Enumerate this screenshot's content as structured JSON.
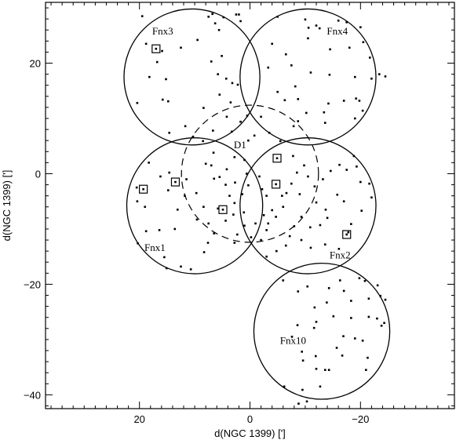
{
  "chart_data": {
    "type": "scatter",
    "title": "",
    "xlabel": "d(NGC 1399) [']",
    "ylabel": "d(NGC 1399) [']",
    "xlim": [
      37,
      -37
    ],
    "ylim": [
      -42.5,
      31
    ],
    "x_ticks": [
      20,
      0,
      -20
    ],
    "x_minor_step": 2,
    "y_ticks": [
      20,
      0,
      -20,
      -40
    ],
    "y_minor_step": 2,
    "x_tick_labels": [
      "20",
      "0",
      "−20"
    ],
    "y_tick_labels": [
      "20",
      "0",
      "−20",
      "−40"
    ],
    "fields": [
      {
        "name": "Fnx3",
        "cx": 10.5,
        "cy": 17.5,
        "r": 12.3,
        "style": "solid",
        "label_x": 15.8,
        "label_y": 25.2
      },
      {
        "name": "Fnx4",
        "cx": -10.5,
        "cy": 17.5,
        "r": 12.3,
        "style": "solid",
        "label_x": -15.8,
        "label_y": 25.2
      },
      {
        "name": "D1",
        "cx": 0,
        "cy": 0,
        "r": 12.4,
        "style": "dashed",
        "label_x": 1.8,
        "label_y": 4.6
      },
      {
        "name": "Fnx1",
        "cx": 10.0,
        "cy": -5.8,
        "r": 12.3,
        "style": "solid",
        "label_x": 17.2,
        "label_y": -14.0
      },
      {
        "name": "Fnx2",
        "cx": -10.5,
        "cy": -5.8,
        "r": 12.3,
        "style": "solid",
        "label_x": -16.3,
        "label_y": -15.3
      },
      {
        "name": "Fnx10",
        "cx": -13.0,
        "cy": -28.5,
        "r": 12.3,
        "style": "solid",
        "label_x": -7.8,
        "label_y": -30.8
      }
    ],
    "series": [
      {
        "marker": "dot",
        "points": [
          [
            19.5,
            28.5
          ],
          [
            18.8,
            23.5
          ],
          [
            16.8,
            20.2
          ],
          [
            15.2,
            17.1
          ],
          [
            15.9,
            22.2
          ],
          [
            18.2,
            17.5
          ],
          [
            20.4,
            12.8
          ],
          [
            15.8,
            13.4
          ],
          [
            14.8,
            13.1
          ],
          [
            12.5,
            22.8
          ],
          [
            9.5,
            24.2
          ],
          [
            6.8,
            28.9
          ],
          [
            7.5,
            28.4
          ],
          [
            4.8,
            28.3
          ],
          [
            6.3,
            27.2
          ],
          [
            2.5,
            28.8
          ],
          [
            2.0,
            28.8
          ],
          [
            1.7,
            27.6
          ],
          [
            5.6,
            26.0
          ],
          [
            7.0,
            20.3
          ],
          [
            5.8,
            18.0
          ],
          [
            4.3,
            17.2
          ],
          [
            3.2,
            16.4
          ],
          [
            2.2,
            16.1
          ],
          [
            5.5,
            14.3
          ],
          [
            3.5,
            12.9
          ],
          [
            5.1,
            21.3
          ],
          [
            8.4,
            11.9
          ],
          [
            11.7,
            8.6
          ],
          [
            14.6,
            7.4
          ],
          [
            3.3,
            7.6
          ],
          [
            1.7,
            9.4
          ],
          [
            0.5,
            10.5
          ],
          [
            4.2,
            10.3
          ],
          [
            6.7,
            7.8
          ],
          [
            -5.0,
            28.4
          ],
          [
            -10.0,
            27.9
          ],
          [
            -12.0,
            26.8
          ],
          [
            -12.6,
            26.3
          ],
          [
            -16.0,
            27.7
          ],
          [
            -17.5,
            27.4
          ],
          [
            -18.0,
            22.8
          ],
          [
            -20.5,
            23.8
          ],
          [
            -21.7,
            21.0
          ],
          [
            -23.4,
            18.0
          ],
          [
            -24.5,
            17.6
          ],
          [
            -22.0,
            17.2
          ],
          [
            -19.0,
            17.5
          ],
          [
            -14.4,
            17.9
          ],
          [
            -11.0,
            18.3
          ],
          [
            -7.5,
            19.6
          ],
          [
            -6.5,
            21.6
          ],
          [
            -8.2,
            15.8
          ],
          [
            -5.0,
            14.8
          ],
          [
            -6.3,
            13.3
          ],
          [
            -8.7,
            13.5
          ],
          [
            -10.2,
            11.0
          ],
          [
            -13.4,
            11.1
          ],
          [
            -14.2,
            12.7
          ],
          [
            -17.0,
            13.2
          ],
          [
            -19.2,
            13.6
          ],
          [
            -19.8,
            13.2
          ],
          [
            -20.4,
            11.4
          ],
          [
            -19.0,
            10.0
          ],
          [
            -13.6,
            9.2
          ],
          [
            -7.9,
            8.6
          ],
          [
            -10.5,
            24.5
          ],
          [
            -14.5,
            22.5
          ],
          [
            -20.0,
            26.5
          ],
          [
            -4.0,
            23.5
          ],
          [
            -10.6,
            26.4
          ],
          [
            -3.3,
            19.2
          ],
          [
            -8.7,
            9.5
          ],
          [
            18.3,
            2.0
          ],
          [
            16.2,
            -0.5
          ],
          [
            20.5,
            -2.5
          ],
          [
            20.4,
            -5.0
          ],
          [
            19.0,
            -6.0
          ],
          [
            14.8,
            -3.0
          ],
          [
            13.1,
            -6.5
          ],
          [
            11.8,
            -4.0
          ],
          [
            11.5,
            -1.0
          ],
          [
            9.7,
            -3.5
          ],
          [
            9.6,
            -8.3
          ],
          [
            13.6,
            -10.0
          ],
          [
            16.4,
            -10.2
          ],
          [
            18.8,
            -10.4
          ],
          [
            20.3,
            -12.6
          ],
          [
            15.5,
            -15.1
          ],
          [
            12.5,
            -16.8
          ],
          [
            15.1,
            -17.1
          ],
          [
            10.7,
            -17.3
          ],
          [
            8.3,
            -14.2
          ],
          [
            7.6,
            -12.5
          ],
          [
            6.5,
            -10.8
          ],
          [
            7.5,
            -9.0
          ],
          [
            8.4,
            -6.0
          ],
          [
            5.8,
            -6.3
          ],
          [
            4.4,
            -8.5
          ],
          [
            2.3,
            -11.0
          ],
          [
            2.8,
            -12.5
          ],
          [
            1.0,
            -9.4
          ],
          [
            1.1,
            -7.0
          ],
          [
            3.0,
            -7.4
          ],
          [
            2.8,
            -5.3
          ],
          [
            3.7,
            -4.0
          ],
          [
            4.4,
            -2.0
          ],
          [
            5.5,
            -0.6
          ],
          [
            7.0,
            1.5
          ],
          [
            8.0,
            1.8
          ],
          [
            6.6,
            3.8
          ],
          [
            2.8,
            3.0
          ],
          [
            4.2,
            0.8
          ],
          [
            2.7,
            -1.6
          ],
          [
            1.4,
            -3.7
          ],
          [
            0.3,
            -2.1
          ],
          [
            0.6,
            0.0
          ],
          [
            1.0,
            2.5
          ],
          [
            0.3,
            6.0
          ],
          [
            -0.8,
            6.9
          ],
          [
            8.5,
            5.9
          ],
          [
            10.3,
            6.7
          ],
          [
            14.6,
            0.2
          ],
          [
            6.5,
            -0.9
          ],
          [
            -1.7,
            -0.5
          ],
          [
            -2.2,
            -2.8
          ],
          [
            -3.0,
            -4.0
          ],
          [
            -4.0,
            -6.6
          ],
          [
            -2.5,
            -7.5
          ],
          [
            -1.0,
            -9.0
          ],
          [
            -0.2,
            -11.5
          ],
          [
            -2.0,
            -12.0
          ],
          [
            -3.0,
            -10.2
          ],
          [
            -3.3,
            -9.0
          ],
          [
            -4.7,
            -7.8
          ],
          [
            -6.0,
            -6.0
          ],
          [
            -5.8,
            -4.0
          ],
          [
            -6.6,
            -3.5
          ],
          [
            -7.5,
            -1.8
          ],
          [
            -8.5,
            0.2
          ],
          [
            -9.8,
            1.5
          ],
          [
            -10.5,
            -0.5
          ],
          [
            -11.7,
            -2.3
          ],
          [
            -13.2,
            -1.0
          ],
          [
            -14.6,
            0.5
          ],
          [
            -16.2,
            1.6
          ],
          [
            -17.5,
            0.7
          ],
          [
            -18.8,
            3.2
          ],
          [
            -19.3,
            1.3
          ],
          [
            -20.0,
            -1.5
          ],
          [
            -21.6,
            -1.8
          ],
          [
            -22.0,
            -4.3
          ],
          [
            -20.2,
            -6.7
          ],
          [
            -17.0,
            -5.0
          ],
          [
            -15.8,
            -3.8
          ],
          [
            -13.7,
            -6.5
          ],
          [
            -12.7,
            -9.3
          ],
          [
            -10.9,
            -9.7
          ],
          [
            -9.3,
            -7.8
          ],
          [
            -8.0,
            -9.5
          ],
          [
            -7.2,
            -11.3
          ],
          [
            -9.3,
            -12.0
          ],
          [
            -11.0,
            -13.4
          ],
          [
            -13.6,
            -12.8
          ],
          [
            -16.1,
            -13.6
          ],
          [
            -17.8,
            -10.6
          ],
          [
            -18.3,
            -9.1
          ],
          [
            -6.5,
            -13.0
          ],
          [
            -4.8,
            -14.0
          ],
          [
            -3.0,
            -15.0
          ],
          [
            -7.8,
            3.2
          ],
          [
            -5.5,
            5.9
          ],
          [
            -3.5,
            7.4
          ],
          [
            -2.0,
            10.3
          ],
          [
            -9.0,
            -3.7
          ],
          [
            -12.0,
            -5.2
          ],
          [
            -14.0,
            -8.0
          ],
          [
            -6.0,
            -19.3
          ],
          [
            -8.7,
            -21.3
          ],
          [
            -10.4,
            -20.4
          ],
          [
            -14.3,
            -20.7
          ],
          [
            -16.3,
            -19.3
          ],
          [
            -19.8,
            -18.9
          ],
          [
            -20.8,
            -19.4
          ],
          [
            -23.1,
            -20.2
          ],
          [
            -23.6,
            -22.1
          ],
          [
            -24.5,
            -22.8
          ],
          [
            -21.5,
            -22.6
          ],
          [
            -18.3,
            -23.0
          ],
          [
            -17.0,
            -21.2
          ],
          [
            -15.1,
            -25.8
          ],
          [
            -12.0,
            -26.8
          ],
          [
            -11.6,
            -27.9
          ],
          [
            -8.6,
            -27.4
          ],
          [
            -7.6,
            -29.5
          ],
          [
            -9.4,
            -32.2
          ],
          [
            -11.9,
            -33.0
          ],
          [
            -12.0,
            -35.3
          ],
          [
            -9.6,
            -33.8
          ],
          [
            -13.6,
            -35.5
          ],
          [
            -15.7,
            -31.5
          ],
          [
            -19.0,
            -29.8
          ],
          [
            -20.4,
            -30.2
          ],
          [
            -21.3,
            -33.3
          ],
          [
            -23.8,
            -27.5
          ],
          [
            -24.3,
            -27.0
          ],
          [
            -23.0,
            -26.2
          ],
          [
            -21.5,
            -25.9
          ],
          [
            -18.3,
            -26.1
          ],
          [
            -16.9,
            -29.4
          ],
          [
            -14.3,
            -35.5
          ],
          [
            -12.7,
            -38.5
          ],
          [
            -9.5,
            -39.1
          ],
          [
            -6.2,
            -38.5
          ],
          [
            -10.3,
            -41.2
          ],
          [
            -8.8,
            -41.6
          ],
          [
            -11.7,
            -24.2
          ],
          [
            -13.9,
            -23.3
          ],
          [
            -16.7,
            -32.9
          ],
          [
            -21.0,
            -35.5
          ]
        ]
      },
      {
        "marker": "square",
        "points": [
          [
            17.0,
            22.6
          ],
          [
            19.3,
            -2.8
          ],
          [
            13.5,
            -1.5
          ],
          [
            4.9,
            -6.5
          ],
          [
            -4.9,
            2.8
          ],
          [
            -4.7,
            -1.9
          ],
          [
            -17.5,
            -11.0
          ]
        ]
      }
    ]
  }
}
